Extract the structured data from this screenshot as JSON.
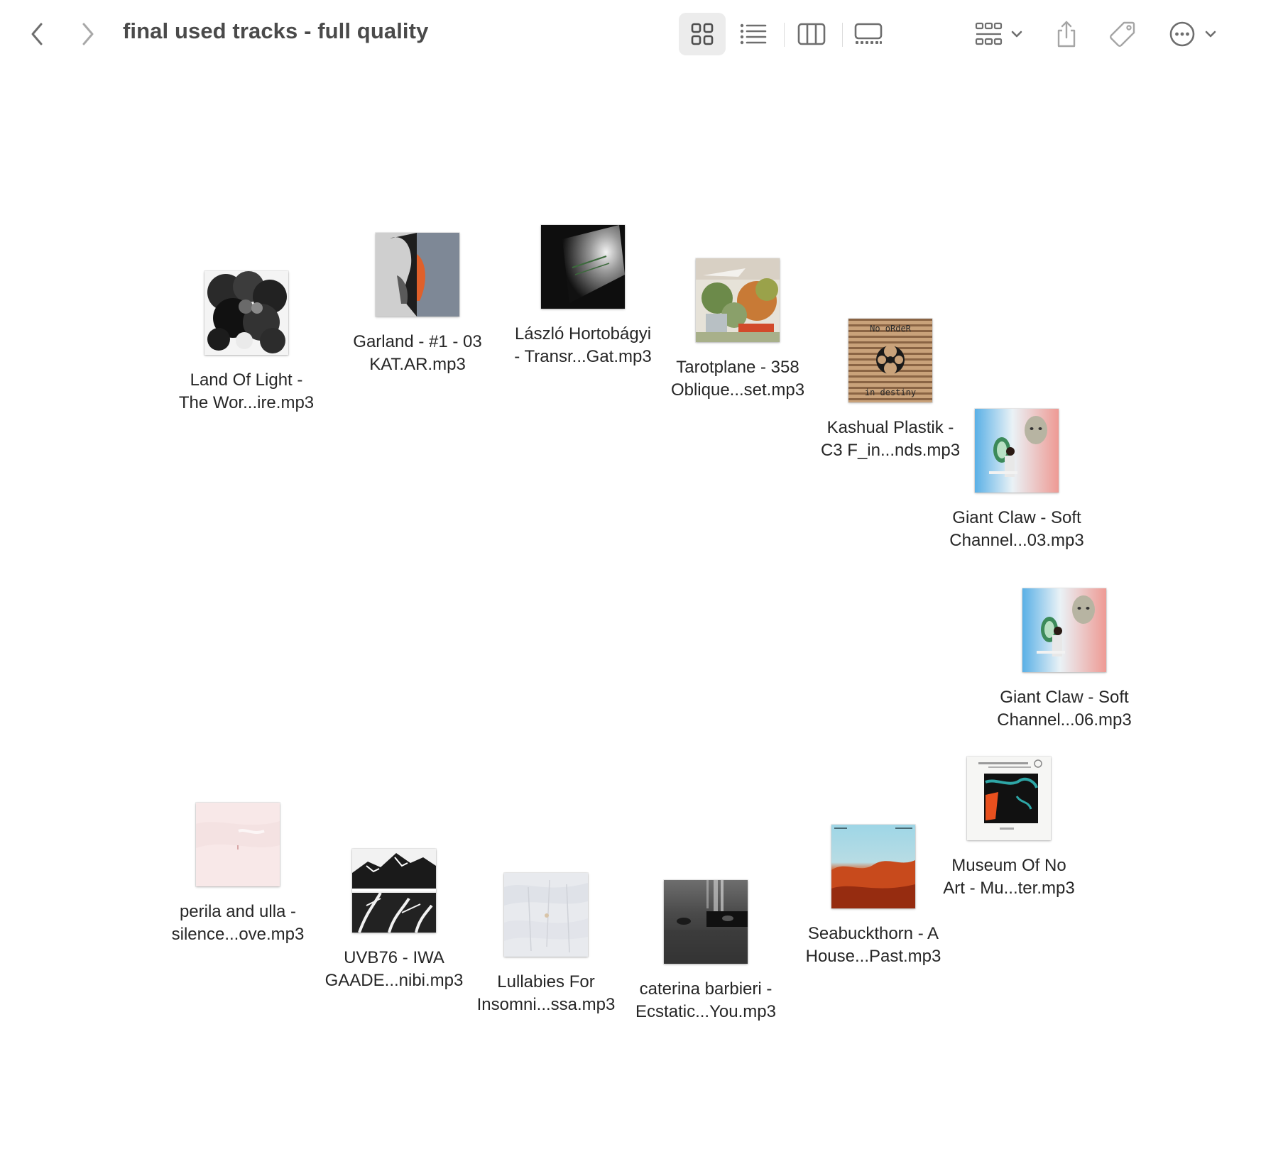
{
  "window": {
    "title": "final used tracks - full quality"
  },
  "toolbar": {
    "back_icon": "chevron-left-icon",
    "forward_icon": "chevron-right-icon",
    "view_icons": "grid-icon",
    "view_list": "list-icon",
    "view_columns": "columns-icon",
    "view_gallery": "gallery-icon",
    "group_by": "group-icon",
    "share": "share-icon",
    "tags": "tag-icon",
    "more": "ellipsis-circle-icon",
    "selected_view": "icons"
  },
  "files": [
    {
      "line1": "Land Of Light -",
      "line2": "The Wor...ire.mp3",
      "art": "smoke"
    },
    {
      "line1": "Garland - #1 - 03",
      "line2": "KAT.AR.mp3",
      "art": "garland"
    },
    {
      "line1": "László Hortobágyi",
      "line2": "- Transr...Gat.mp3",
      "art": "laszlo"
    },
    {
      "line1": "Tarotplane - 358",
      "line2": "Oblique...set.mp3",
      "art": "tarot"
    },
    {
      "line1": "Kashual Plastik -",
      "line2": "C3 F_in...nds.mp3",
      "art": "kashual"
    },
    {
      "line1": "Giant Claw - Soft",
      "line2": "Channel...03.mp3",
      "art": "giantclaw"
    },
    {
      "line1": "Giant Claw - Soft",
      "line2": "Channel...06.mp3",
      "art": "giantclaw"
    },
    {
      "line1": "Museum Of No",
      "line2": "Art - Mu...ter.mp3",
      "art": "museum"
    },
    {
      "line1": "Seabuckthorn - A",
      "line2": "House...Past.mp3",
      "art": "seabuck"
    },
    {
      "line1": "caterina barbieri -",
      "line2": "Ecstatic...You.mp3",
      "art": "caterina"
    },
    {
      "line1": "Lullabies For",
      "line2": "Insomni...ssa.mp3",
      "art": "lullabies"
    },
    {
      "line1": "UVB76 - IWA",
      "line2": "GAADE...nibi.mp3",
      "art": "uvb"
    },
    {
      "line1": "perila and ulla -",
      "line2": "silence...ove.mp3",
      "art": "perila"
    }
  ],
  "art_text": {
    "kashual_top": "No oRdeR",
    "kashual_bottom": "in destiny"
  }
}
